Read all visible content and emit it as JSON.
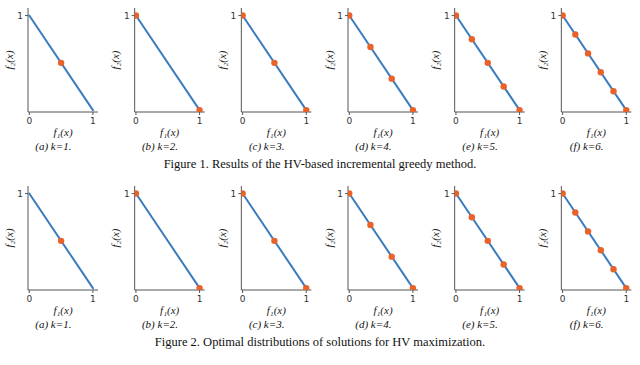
{
  "chart_data": [
    {
      "type": "scatter",
      "title": "(a) k=1.",
      "x_label": "f₁(x)",
      "y_label": "f₂(x)",
      "xlim": [
        -0.02,
        1.08
      ],
      "ylim": [
        -0.02,
        1.08
      ],
      "xticks": [
        0,
        1
      ],
      "yticks": [
        1
      ],
      "grid": false,
      "series": [
        {
          "type": "line",
          "color": "#3b7bbf",
          "x": [
            0,
            1
          ],
          "values": [
            1,
            0
          ]
        },
        {
          "type": "scatter",
          "color": "#e8622a",
          "x": [
            0.5
          ],
          "values": [
            0.5
          ]
        }
      ]
    },
    {
      "type": "scatter",
      "title": "(b) k=2.",
      "x_label": "f₁(x)",
      "y_label": "f₂(x)",
      "xlim": [
        -0.02,
        1.08
      ],
      "ylim": [
        -0.02,
        1.08
      ],
      "xticks": [
        0,
        1
      ],
      "yticks": [
        1
      ],
      "grid": false,
      "series": [
        {
          "type": "line",
          "color": "#3b7bbf",
          "x": [
            0,
            1
          ],
          "values": [
            1,
            0
          ]
        },
        {
          "type": "scatter",
          "color": "#e8622a",
          "x": [
            0.0,
            1.0
          ],
          "values": [
            1.0,
            0.0
          ]
        }
      ]
    },
    {
      "type": "scatter",
      "title": "(c) k=3.",
      "x_label": "f₁(x)",
      "y_label": "f₂(x)",
      "xlim": [
        -0.02,
        1.08
      ],
      "ylim": [
        -0.02,
        1.08
      ],
      "xticks": [
        0,
        1
      ],
      "yticks": [
        1
      ],
      "grid": false,
      "series": [
        {
          "type": "line",
          "color": "#3b7bbf",
          "x": [
            0,
            1
          ],
          "values": [
            1,
            0
          ]
        },
        {
          "type": "scatter",
          "color": "#e8622a",
          "x": [
            0.0,
            0.5,
            1.0
          ],
          "values": [
            1.0,
            0.5,
            0.0
          ]
        }
      ]
    },
    {
      "type": "scatter",
      "title": "(d) k=4.",
      "x_label": "f₁(x)",
      "y_label": "f₂(x)",
      "xlim": [
        -0.02,
        1.08
      ],
      "ylim": [
        -0.02,
        1.08
      ],
      "xticks": [
        0,
        1
      ],
      "yticks": [
        1
      ],
      "grid": false,
      "series": [
        {
          "type": "line",
          "color": "#3b7bbf",
          "x": [
            0,
            1
          ],
          "values": [
            1,
            0
          ]
        },
        {
          "type": "scatter",
          "color": "#e8622a",
          "x": [
            0.0,
            0.333,
            0.667,
            1.0
          ],
          "values": [
            1.0,
            0.667,
            0.333,
            0.0
          ]
        }
      ]
    },
    {
      "type": "scatter",
      "title": "(e) k=5.",
      "x_label": "f₁(x)",
      "y_label": "f₂(x)",
      "xlim": [
        -0.02,
        1.08
      ],
      "ylim": [
        -0.02,
        1.08
      ],
      "xticks": [
        0,
        1
      ],
      "yticks": [
        1
      ],
      "grid": false,
      "series": [
        {
          "type": "line",
          "color": "#3b7bbf",
          "x": [
            0,
            1
          ],
          "values": [
            1,
            0
          ]
        },
        {
          "type": "scatter",
          "color": "#e8622a",
          "x": [
            0.0,
            0.25,
            0.5,
            0.75,
            1.0
          ],
          "values": [
            1.0,
            0.75,
            0.5,
            0.25,
            0.0
          ]
        }
      ]
    },
    {
      "type": "scatter",
      "title": "(f) k=6.",
      "x_label": "f₁(x)",
      "y_label": "f₂(x)",
      "xlim": [
        -0.02,
        1.08
      ],
      "ylim": [
        -0.02,
        1.08
      ],
      "xticks": [
        0,
        1
      ],
      "yticks": [
        1
      ],
      "grid": false,
      "series": [
        {
          "type": "line",
          "color": "#3b7bbf",
          "x": [
            0,
            1
          ],
          "values": [
            1,
            0
          ]
        },
        {
          "type": "scatter",
          "color": "#e8622a",
          "x": [
            0.0,
            0.2,
            0.4,
            0.6,
            0.8,
            1.0
          ],
          "values": [
            1.0,
            0.8,
            0.6,
            0.4,
            0.2,
            0.0
          ]
        }
      ]
    },
    {
      "type": "scatter",
      "title": "(a) k=1.",
      "x_label": "f₁(x)",
      "y_label": "f₂(x)",
      "xlim": [
        -0.02,
        1.08
      ],
      "ylim": [
        -0.02,
        1.08
      ],
      "xticks": [
        0,
        1
      ],
      "yticks": [
        1
      ],
      "grid": false,
      "series": [
        {
          "type": "line",
          "color": "#3b7bbf",
          "x": [
            0,
            1
          ],
          "values": [
            1,
            0
          ]
        },
        {
          "type": "scatter",
          "color": "#e8622a",
          "x": [
            0.5
          ],
          "values": [
            0.5
          ]
        }
      ]
    },
    {
      "type": "scatter",
      "title": "(b) k=2.",
      "x_label": "f₁(x)",
      "y_label": "f₂(x)",
      "xlim": [
        -0.02,
        1.08
      ],
      "ylim": [
        -0.02,
        1.08
      ],
      "xticks": [
        0,
        1
      ],
      "yticks": [
        1
      ],
      "grid": false,
      "series": [
        {
          "type": "line",
          "color": "#3b7bbf",
          "x": [
            0,
            1
          ],
          "values": [
            1,
            0
          ]
        },
        {
          "type": "scatter",
          "color": "#e8622a",
          "x": [
            0.0,
            1.0
          ],
          "values": [
            1.0,
            0.0
          ]
        }
      ]
    },
    {
      "type": "scatter",
      "title": "(c) k=3.",
      "x_label": "f₁(x)",
      "y_label": "f₂(x)",
      "xlim": [
        -0.02,
        1.08
      ],
      "ylim": [
        -0.02,
        1.08
      ],
      "xticks": [
        0,
        1
      ],
      "yticks": [
        1
      ],
      "grid": false,
      "series": [
        {
          "type": "line",
          "color": "#3b7bbf",
          "x": [
            0,
            1
          ],
          "values": [
            1,
            0
          ]
        },
        {
          "type": "scatter",
          "color": "#e8622a",
          "x": [
            0.0,
            0.5,
            1.0
          ],
          "values": [
            1.0,
            0.5,
            0.0
          ]
        }
      ]
    },
    {
      "type": "scatter",
      "title": "(d) k=4.",
      "x_label": "f₁(x)",
      "y_label": "f₂(x)",
      "xlim": [
        -0.02,
        1.08
      ],
      "ylim": [
        -0.02,
        1.08
      ],
      "xticks": [
        0,
        1
      ],
      "yticks": [
        1
      ],
      "grid": false,
      "series": [
        {
          "type": "line",
          "color": "#3b7bbf",
          "x": [
            0,
            1
          ],
          "values": [
            1,
            0
          ]
        },
        {
          "type": "scatter",
          "color": "#e8622a",
          "x": [
            0.0,
            0.333,
            0.667,
            1.0
          ],
          "values": [
            1.0,
            0.667,
            0.333,
            0.0
          ]
        }
      ]
    },
    {
      "type": "scatter",
      "title": "(e) k=5.",
      "x_label": "f₁(x)",
      "y_label": "f₂(x)",
      "xlim": [
        -0.02,
        1.08
      ],
      "ylim": [
        -0.02,
        1.08
      ],
      "xticks": [
        0,
        1
      ],
      "yticks": [
        1
      ],
      "grid": false,
      "series": [
        {
          "type": "line",
          "color": "#3b7bbf",
          "x": [
            0,
            1
          ],
          "values": [
            1,
            0
          ]
        },
        {
          "type": "scatter",
          "color": "#e8622a",
          "x": [
            0.0,
            0.25,
            0.5,
            0.75,
            1.0
          ],
          "values": [
            1.0,
            0.75,
            0.5,
            0.25,
            0.0
          ]
        }
      ]
    },
    {
      "type": "scatter",
      "title": "(f) k=6.",
      "x_label": "f₁(x)",
      "y_label": "f₂(x)",
      "xlim": [
        -0.02,
        1.08
      ],
      "ylim": [
        -0.02,
        1.08
      ],
      "xticks": [
        0,
        1
      ],
      "yticks": [
        1
      ],
      "grid": false,
      "series": [
        {
          "type": "line",
          "color": "#3b7bbf",
          "x": [
            0,
            1
          ],
          "values": [
            1,
            0
          ]
        },
        {
          "type": "scatter",
          "color": "#e8622a",
          "x": [
            0.0,
            0.2,
            0.4,
            0.6,
            0.8,
            1.0
          ],
          "values": [
            1.0,
            0.8,
            0.6,
            0.4,
            0.2,
            0.0
          ]
        }
      ]
    }
  ],
  "annotations": [
    "Figure 1.  Results of the HV-based incremental greedy method.",
    "Figure 2.  Optimal distributions of solutions for HV maximization."
  ]
}
